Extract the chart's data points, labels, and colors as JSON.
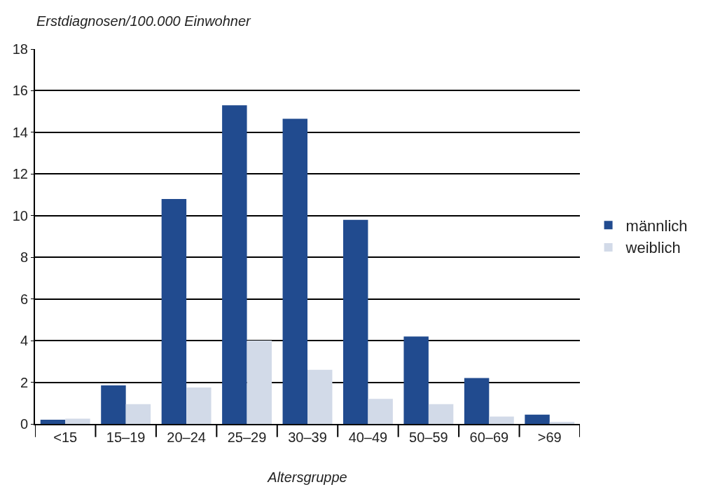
{
  "chart_data": {
    "type": "bar",
    "ylabel": "Erstdiagnosen/100.000 Einwohner",
    "xlabel": "Altersgruppe",
    "categories": [
      "<15",
      "15–19",
      "20–24",
      "25–29",
      "30–39",
      "40–49",
      "50–59",
      "60–69",
      ">69"
    ],
    "series": [
      {
        "name": "männlich",
        "color": "#214b8f",
        "values": [
          0.2,
          1.85,
          10.8,
          15.3,
          14.65,
          9.8,
          4.2,
          2.2,
          0.45
        ]
      },
      {
        "name": "weiblich",
        "color": "#d2dae8",
        "values": [
          0.25,
          0.95,
          1.75,
          4.0,
          2.6,
          1.2,
          0.95,
          0.35,
          0.1
        ]
      }
    ],
    "ylim": [
      0,
      18
    ],
    "yticks": [
      0,
      2,
      4,
      6,
      8,
      10,
      12,
      14,
      16,
      18
    ],
    "grid": "y",
    "legend": "right"
  }
}
